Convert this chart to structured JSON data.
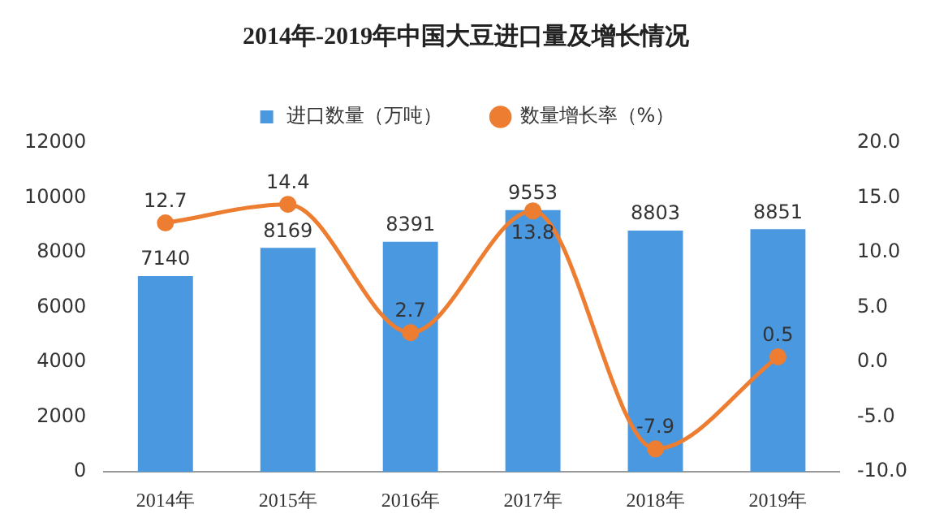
{
  "chart_data": {
    "type": "bar",
    "title": "2014年-2019年中国大豆进口量及增长情况",
    "categories": [
      "2014年",
      "2015年",
      "2016年",
      "2017年",
      "2018年",
      "2019年"
    ],
    "series": [
      {
        "name": "进口数量（万吨）",
        "color": "#4a98e0",
        "values": [
          7140,
          8169,
          8391,
          9553,
          8803,
          8851
        ]
      },
      {
        "name": "数量增长率（%）",
        "type": "line",
        "axis": "y2",
        "color": "#ed7d31",
        "values": [
          12.7,
          14.4,
          2.7,
          13.8,
          -7.9,
          0.5
        ]
      }
    ],
    "ylim": [
      0,
      12000
    ],
    "yticks": [
      0,
      2000,
      4000,
      6000,
      8000,
      10000,
      12000
    ],
    "y2lim": [
      -10,
      20
    ],
    "y2ticks": [
      {
        "value": -10,
        "label": "-10.0"
      },
      {
        "value": -5,
        "label": "-5.0"
      },
      {
        "value": 0,
        "label": "0.0"
      },
      {
        "value": 5,
        "label": "5.0"
      },
      {
        "value": 10,
        "label": "10.0"
      },
      {
        "value": 15,
        "label": "15.0"
      },
      {
        "value": 20,
        "label": "20.0"
      }
    ],
    "data_labels": true,
    "legend": "top",
    "marker": "circle",
    "line_style": "solid"
  }
}
